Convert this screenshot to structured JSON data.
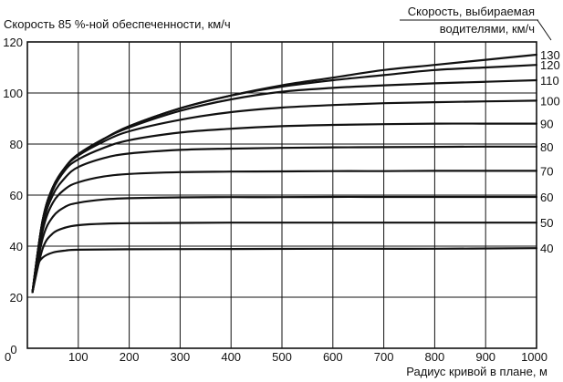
{
  "chart_data": {
    "type": "line",
    "ylabel": "Скорость 85 %-ной обеспеченности, км/ч",
    "xlabel": "Радиус кривой в плане, м",
    "legend_title_line1": "Скорость, выбираемая",
    "legend_title_line2": "водителями, км/ч",
    "xlim": [
      0,
      1000
    ],
    "ylim": [
      0,
      120
    ],
    "x_ticks": [
      "0",
      "100",
      "200",
      "300",
      "400",
      "500",
      "600",
      "700",
      "800",
      "900",
      "1000"
    ],
    "y_ticks": [
      "0",
      "20",
      "40",
      "60",
      "80",
      "100",
      "120"
    ],
    "grid": true,
    "legend_placement": "right",
    "line_color": "#111111",
    "series": [
      {
        "name": "130",
        "values": [
          [
            10,
            22
          ],
          [
            30,
            50
          ],
          [
            50,
            63
          ],
          [
            75,
            71
          ],
          [
            100,
            76
          ],
          [
            150,
            82
          ],
          [
            200,
            87
          ],
          [
            300,
            94
          ],
          [
            400,
            99
          ],
          [
            500,
            103
          ],
          [
            600,
            106
          ],
          [
            700,
            109
          ],
          [
            800,
            111
          ],
          [
            900,
            113
          ],
          [
            1000,
            115
          ]
        ]
      },
      {
        "name": "120",
        "values": [
          [
            10,
            22
          ],
          [
            30,
            50
          ],
          [
            50,
            63
          ],
          [
            75,
            71
          ],
          [
            100,
            76
          ],
          [
            150,
            82
          ],
          [
            200,
            87
          ],
          [
            300,
            94
          ],
          [
            400,
            99
          ],
          [
            500,
            102.5
          ],
          [
            600,
            105
          ],
          [
            700,
            107
          ],
          [
            800,
            109
          ],
          [
            900,
            110
          ],
          [
            1000,
            111
          ]
        ]
      },
      {
        "name": "110",
        "values": [
          [
            10,
            22
          ],
          [
            30,
            50
          ],
          [
            50,
            63
          ],
          [
            75,
            71
          ],
          [
            100,
            76
          ],
          [
            150,
            82
          ],
          [
            200,
            86.5
          ],
          [
            300,
            93
          ],
          [
            400,
            97.5
          ],
          [
            500,
            100.5
          ],
          [
            600,
            102
          ],
          [
            700,
            103
          ],
          [
            800,
            103.8
          ],
          [
            900,
            104.4
          ],
          [
            1000,
            105
          ]
        ]
      },
      {
        "name": "100",
        "values": [
          [
            10,
            22
          ],
          [
            30,
            50
          ],
          [
            50,
            63
          ],
          [
            75,
            71
          ],
          [
            100,
            75.5
          ],
          [
            150,
            81
          ],
          [
            200,
            85
          ],
          [
            300,
            89.5
          ],
          [
            400,
            92.5
          ],
          [
            500,
            94.3
          ],
          [
            600,
            95.3
          ],
          [
            700,
            96
          ],
          [
            800,
            96.4
          ],
          [
            900,
            96.7
          ],
          [
            1000,
            97
          ]
        ]
      },
      {
        "name": "90",
        "values": [
          [
            10,
            22
          ],
          [
            30,
            49
          ],
          [
            50,
            62
          ],
          [
            75,
            70
          ],
          [
            100,
            74
          ],
          [
            150,
            78.5
          ],
          [
            200,
            81.5
          ],
          [
            300,
            84.5
          ],
          [
            400,
            86
          ],
          [
            500,
            87
          ],
          [
            600,
            87.5
          ],
          [
            700,
            87.8
          ],
          [
            800,
            88
          ],
          [
            900,
            88
          ],
          [
            1000,
            88
          ]
        ]
      },
      {
        "name": "80",
        "values": [
          [
            10,
            22
          ],
          [
            30,
            48
          ],
          [
            50,
            60
          ],
          [
            75,
            67
          ],
          [
            100,
            71
          ],
          [
            150,
            74.5
          ],
          [
            200,
            76.3
          ],
          [
            300,
            77.7
          ],
          [
            400,
            78.2
          ],
          [
            500,
            78.5
          ],
          [
            600,
            78.7
          ],
          [
            700,
            78.8
          ],
          [
            800,
            78.9
          ],
          [
            900,
            79
          ],
          [
            1000,
            79
          ]
        ]
      },
      {
        "name": "70",
        "values": [
          [
            10,
            22
          ],
          [
            30,
            46
          ],
          [
            50,
            57
          ],
          [
            75,
            62.5
          ],
          [
            100,
            65
          ],
          [
            150,
            67.3
          ],
          [
            200,
            68.3
          ],
          [
            300,
            69
          ],
          [
            400,
            69.2
          ],
          [
            500,
            69.3
          ],
          [
            600,
            69.4
          ],
          [
            700,
            69.4
          ],
          [
            800,
            69.5
          ],
          [
            900,
            69.5
          ],
          [
            1000,
            69.5
          ]
        ]
      },
      {
        "name": "60",
        "values": [
          [
            10,
            22
          ],
          [
            30,
            43
          ],
          [
            50,
            51.5
          ],
          [
            75,
            55.5
          ],
          [
            100,
            57
          ],
          [
            150,
            58.3
          ],
          [
            200,
            58.8
          ],
          [
            300,
            59.1
          ],
          [
            400,
            59.2
          ],
          [
            500,
            59.2
          ],
          [
            600,
            59.3
          ],
          [
            700,
            59.3
          ],
          [
            800,
            59.3
          ],
          [
            900,
            59.3
          ],
          [
            1000,
            59.3
          ]
        ]
      },
      {
        "name": "50",
        "values": [
          [
            10,
            22
          ],
          [
            30,
            39
          ],
          [
            50,
            45
          ],
          [
            75,
            47.3
          ],
          [
            100,
            48.2
          ],
          [
            150,
            48.8
          ],
          [
            200,
            49
          ],
          [
            300,
            49.1
          ],
          [
            400,
            49.2
          ],
          [
            500,
            49.2
          ],
          [
            600,
            49.2
          ],
          [
            700,
            49.2
          ],
          [
            800,
            49.2
          ],
          [
            900,
            49.2
          ],
          [
            1000,
            49.2
          ]
        ]
      },
      {
        "name": "40",
        "values": [
          [
            10,
            22
          ],
          [
            20,
            32
          ],
          [
            30,
            35.5
          ],
          [
            50,
            37.5
          ],
          [
            75,
            38.3
          ],
          [
            100,
            38.6
          ],
          [
            200,
            38.8
          ],
          [
            400,
            38.9
          ],
          [
            600,
            39
          ],
          [
            800,
            39
          ],
          [
            1000,
            39.2
          ]
        ]
      }
    ]
  }
}
